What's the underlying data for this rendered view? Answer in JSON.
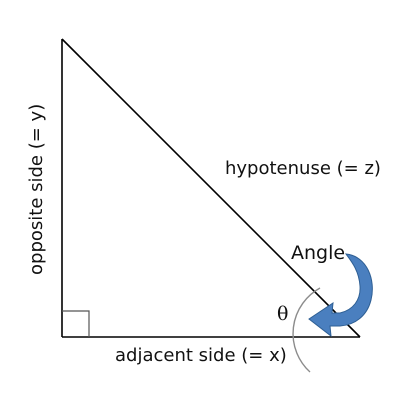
{
  "diagram": {
    "labels": {
      "hypotenuse": "hypotenuse (= z)",
      "opposite": "opposite side (= y)",
      "adjacent": "adjacent side (= x)",
      "angle": "Angle",
      "theta": "θ"
    },
    "colors": {
      "lines": "#000000",
      "angle_arc": "#8c8c8c",
      "arrow_fill": "#4a7fbf",
      "arrow_stroke": "#2e5f94",
      "right_angle_marker": "#555555"
    }
  }
}
